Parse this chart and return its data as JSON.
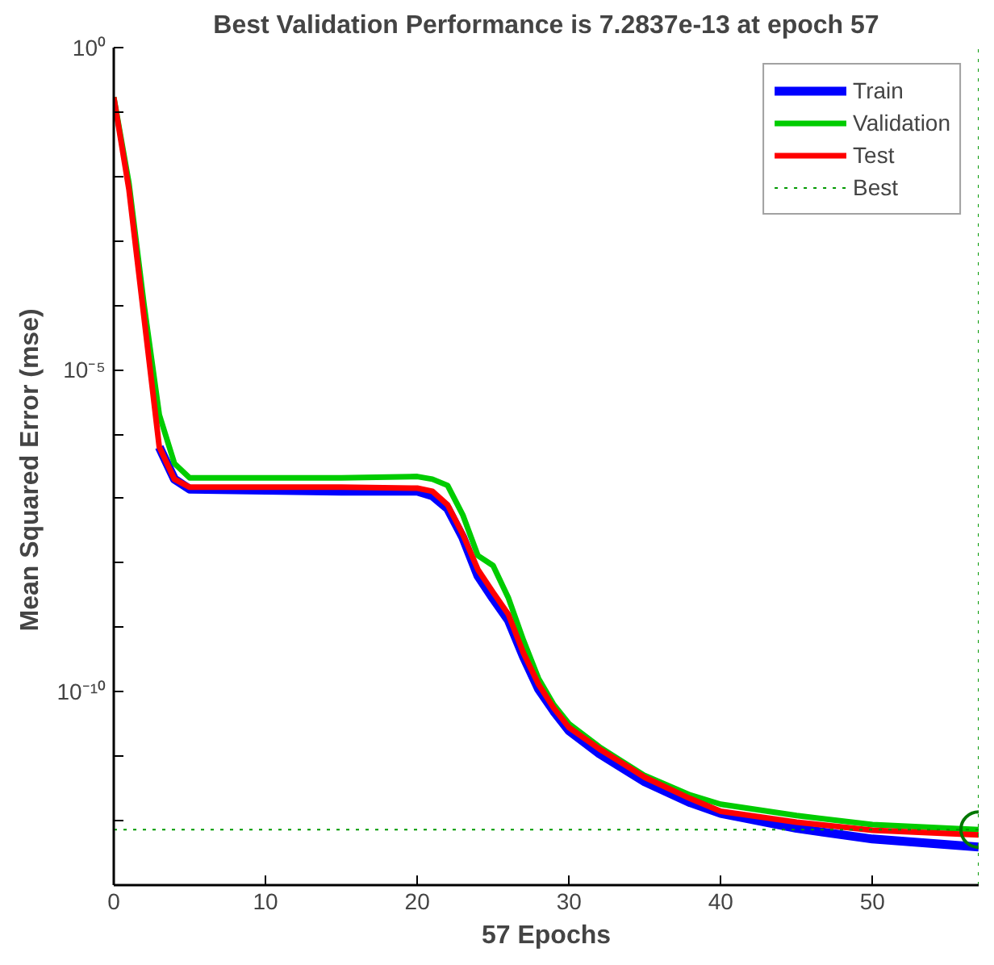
{
  "chart_data": {
    "type": "line",
    "title": "Best Validation Performance is 7.2837e-13 at epoch 57",
    "xlabel": "57 Epochs",
    "ylabel": "Mean Squared Error  (mse)",
    "log": "y",
    "grid": false,
    "legend": "top right",
    "xlim": [
      0,
      57
    ],
    "xticks": [
      0,
      10,
      20,
      30,
      40,
      50
    ],
    "ylim": [
      1e-13,
      1
    ],
    "yticks": [
      {
        "value": 1,
        "label": "10⁰"
      },
      {
        "value": 0.1,
        "label": null
      },
      {
        "value": 0.01,
        "label": null
      },
      {
        "value": 0.001,
        "label": null
      },
      {
        "value": 0.0001,
        "label": null
      },
      {
        "value": 1e-05,
        "label": "10⁻⁵"
      },
      {
        "value": 1e-06,
        "label": null
      },
      {
        "value": 1e-07,
        "label": null
      },
      {
        "value": 1e-08,
        "label": null
      },
      {
        "value": 1e-09,
        "label": null
      },
      {
        "value": 1e-10,
        "label": "10⁻¹⁰"
      },
      {
        "value": 1e-11,
        "label": null
      },
      {
        "value": 1e-12,
        "label": null
      },
      {
        "value": 1e-13,
        "label": null
      }
    ],
    "x": [
      0,
      1,
      2,
      3,
      4,
      5,
      10,
      15,
      20,
      21,
      22,
      23,
      24,
      25,
      26,
      27,
      28,
      29,
      30,
      32,
      35,
      38,
      40,
      45,
      50,
      57
    ],
    "series": [
      {
        "name": "Train",
        "color": "#0000ff",
        "values": [
          null,
          null,
          null,
          6.3e-07,
          2e-07,
          1.4e-07,
          1.35e-07,
          1.3e-07,
          1.3e-07,
          1.1e-07,
          7e-08,
          2.5e-08,
          6.3e-09,
          2.8e-09,
          1.3e-09,
          3.5e-10,
          1.1e-10,
          5e-11,
          2.5e-11,
          1.1e-11,
          4e-12,
          1.9e-12,
          1.3e-12,
          7.6e-13,
          5.2e-13,
          3.9e-13
        ]
      },
      {
        "name": "Validation",
        "color": "#00cc00",
        "values": [
          0.17,
          0.0079,
          0.0001,
          2e-06,
          3.5e-07,
          2.1e-07,
          2.1e-07,
          2.1e-07,
          2.2e-07,
          2e-07,
          1.6e-07,
          5.6e-08,
          1.3e-08,
          9.1e-09,
          2.9e-09,
          6.3e-10,
          1.6e-10,
          6.3e-11,
          3.2e-11,
          1.4e-11,
          5e-12,
          2.5e-12,
          1.8e-12,
          1.2e-12,
          8.7e-13,
          7.2837e-13
        ]
      },
      {
        "name": "Test",
        "color": "#ff0000",
        "values": [
          0.17,
          0.0063,
          6.3e-05,
          6.3e-07,
          2e-07,
          1.5e-07,
          1.5e-07,
          1.5e-07,
          1.45e-07,
          1.3e-07,
          8e-08,
          2.8e-08,
          7.9e-09,
          3.5e-09,
          1.6e-09,
          4e-10,
          1.3e-10,
          5.6e-11,
          2.8e-11,
          1.3e-11,
          4.7e-12,
          2.2e-12,
          1.4e-12,
          9.5e-13,
          7.1e-13,
          6e-13
        ]
      },
      {
        "type": "scatter",
        "marker": "circle",
        "color": "#007700",
        "x": [
          57
        ],
        "values": [
          7.2837e-13
        ]
      }
    ],
    "ref_lines": [
      {
        "axis": "y",
        "value": 7.2837e-13,
        "label": "Best",
        "color": "#009900",
        "line_style": "dotted"
      },
      {
        "axis": "x",
        "value": 57,
        "label": null,
        "color": "#009900",
        "line_style": "dotted"
      }
    ]
  }
}
